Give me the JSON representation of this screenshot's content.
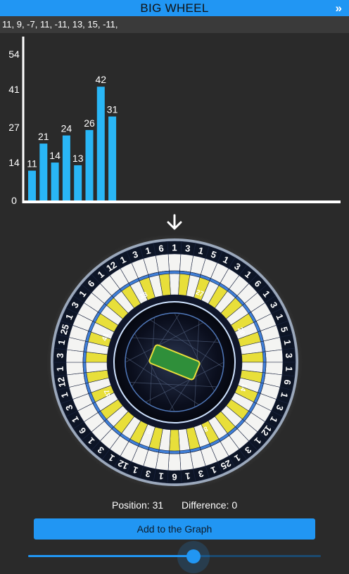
{
  "app": {
    "title": "BIG WHEEL",
    "expand_icon": "double-chevron-right-icon"
  },
  "history_text": "11, 9, -7, 11, -11, 13, 15, -11,",
  "chart_data": {
    "type": "bar",
    "values": [
      11,
      21,
      14,
      24,
      13,
      26,
      42,
      31
    ],
    "y_ticks": [
      0,
      14,
      27,
      41,
      54
    ],
    "ylim": [
      0,
      54
    ],
    "color": "#29b6f6",
    "grid": false
  },
  "wheel": {
    "segment_labels": [
      "1",
      "3",
      "1",
      "5",
      "1",
      "3",
      "1",
      "6",
      "1",
      "3",
      "1",
      "5",
      "1",
      "3",
      "1",
      "6",
      "1",
      "3",
      "1",
      "12",
      "1",
      "3",
      "1",
      "25",
      "1",
      "3",
      "1",
      "6",
      "1",
      "3",
      "1",
      "12",
      "1",
      "3",
      "1",
      "6",
      "1",
      "3",
      "1",
      "12",
      "1",
      "3",
      "1",
      "25",
      "1",
      "3",
      "1",
      "6",
      "1",
      "12",
      "1",
      "3",
      "1",
      "6"
    ],
    "inner_labels": [
      "27",
      "20",
      "14",
      "8",
      "0",
      "47",
      "41",
      "33"
    ],
    "colors": {
      "white": "#f4f4f2",
      "yellow": "#e8df3a",
      "blue": "#3f7fd8",
      "navy": "#0e1a3a",
      "frame": "#0d1526",
      "rim": "#9ba8bb"
    }
  },
  "status": {
    "position_label": "Position: 31",
    "difference_label": "Difference: 0"
  },
  "add_button_label": "Add to the Graph",
  "slider": {
    "value": 0.565,
    "accent": "#2196f3"
  },
  "arrow_icon": "arrow-down-icon"
}
